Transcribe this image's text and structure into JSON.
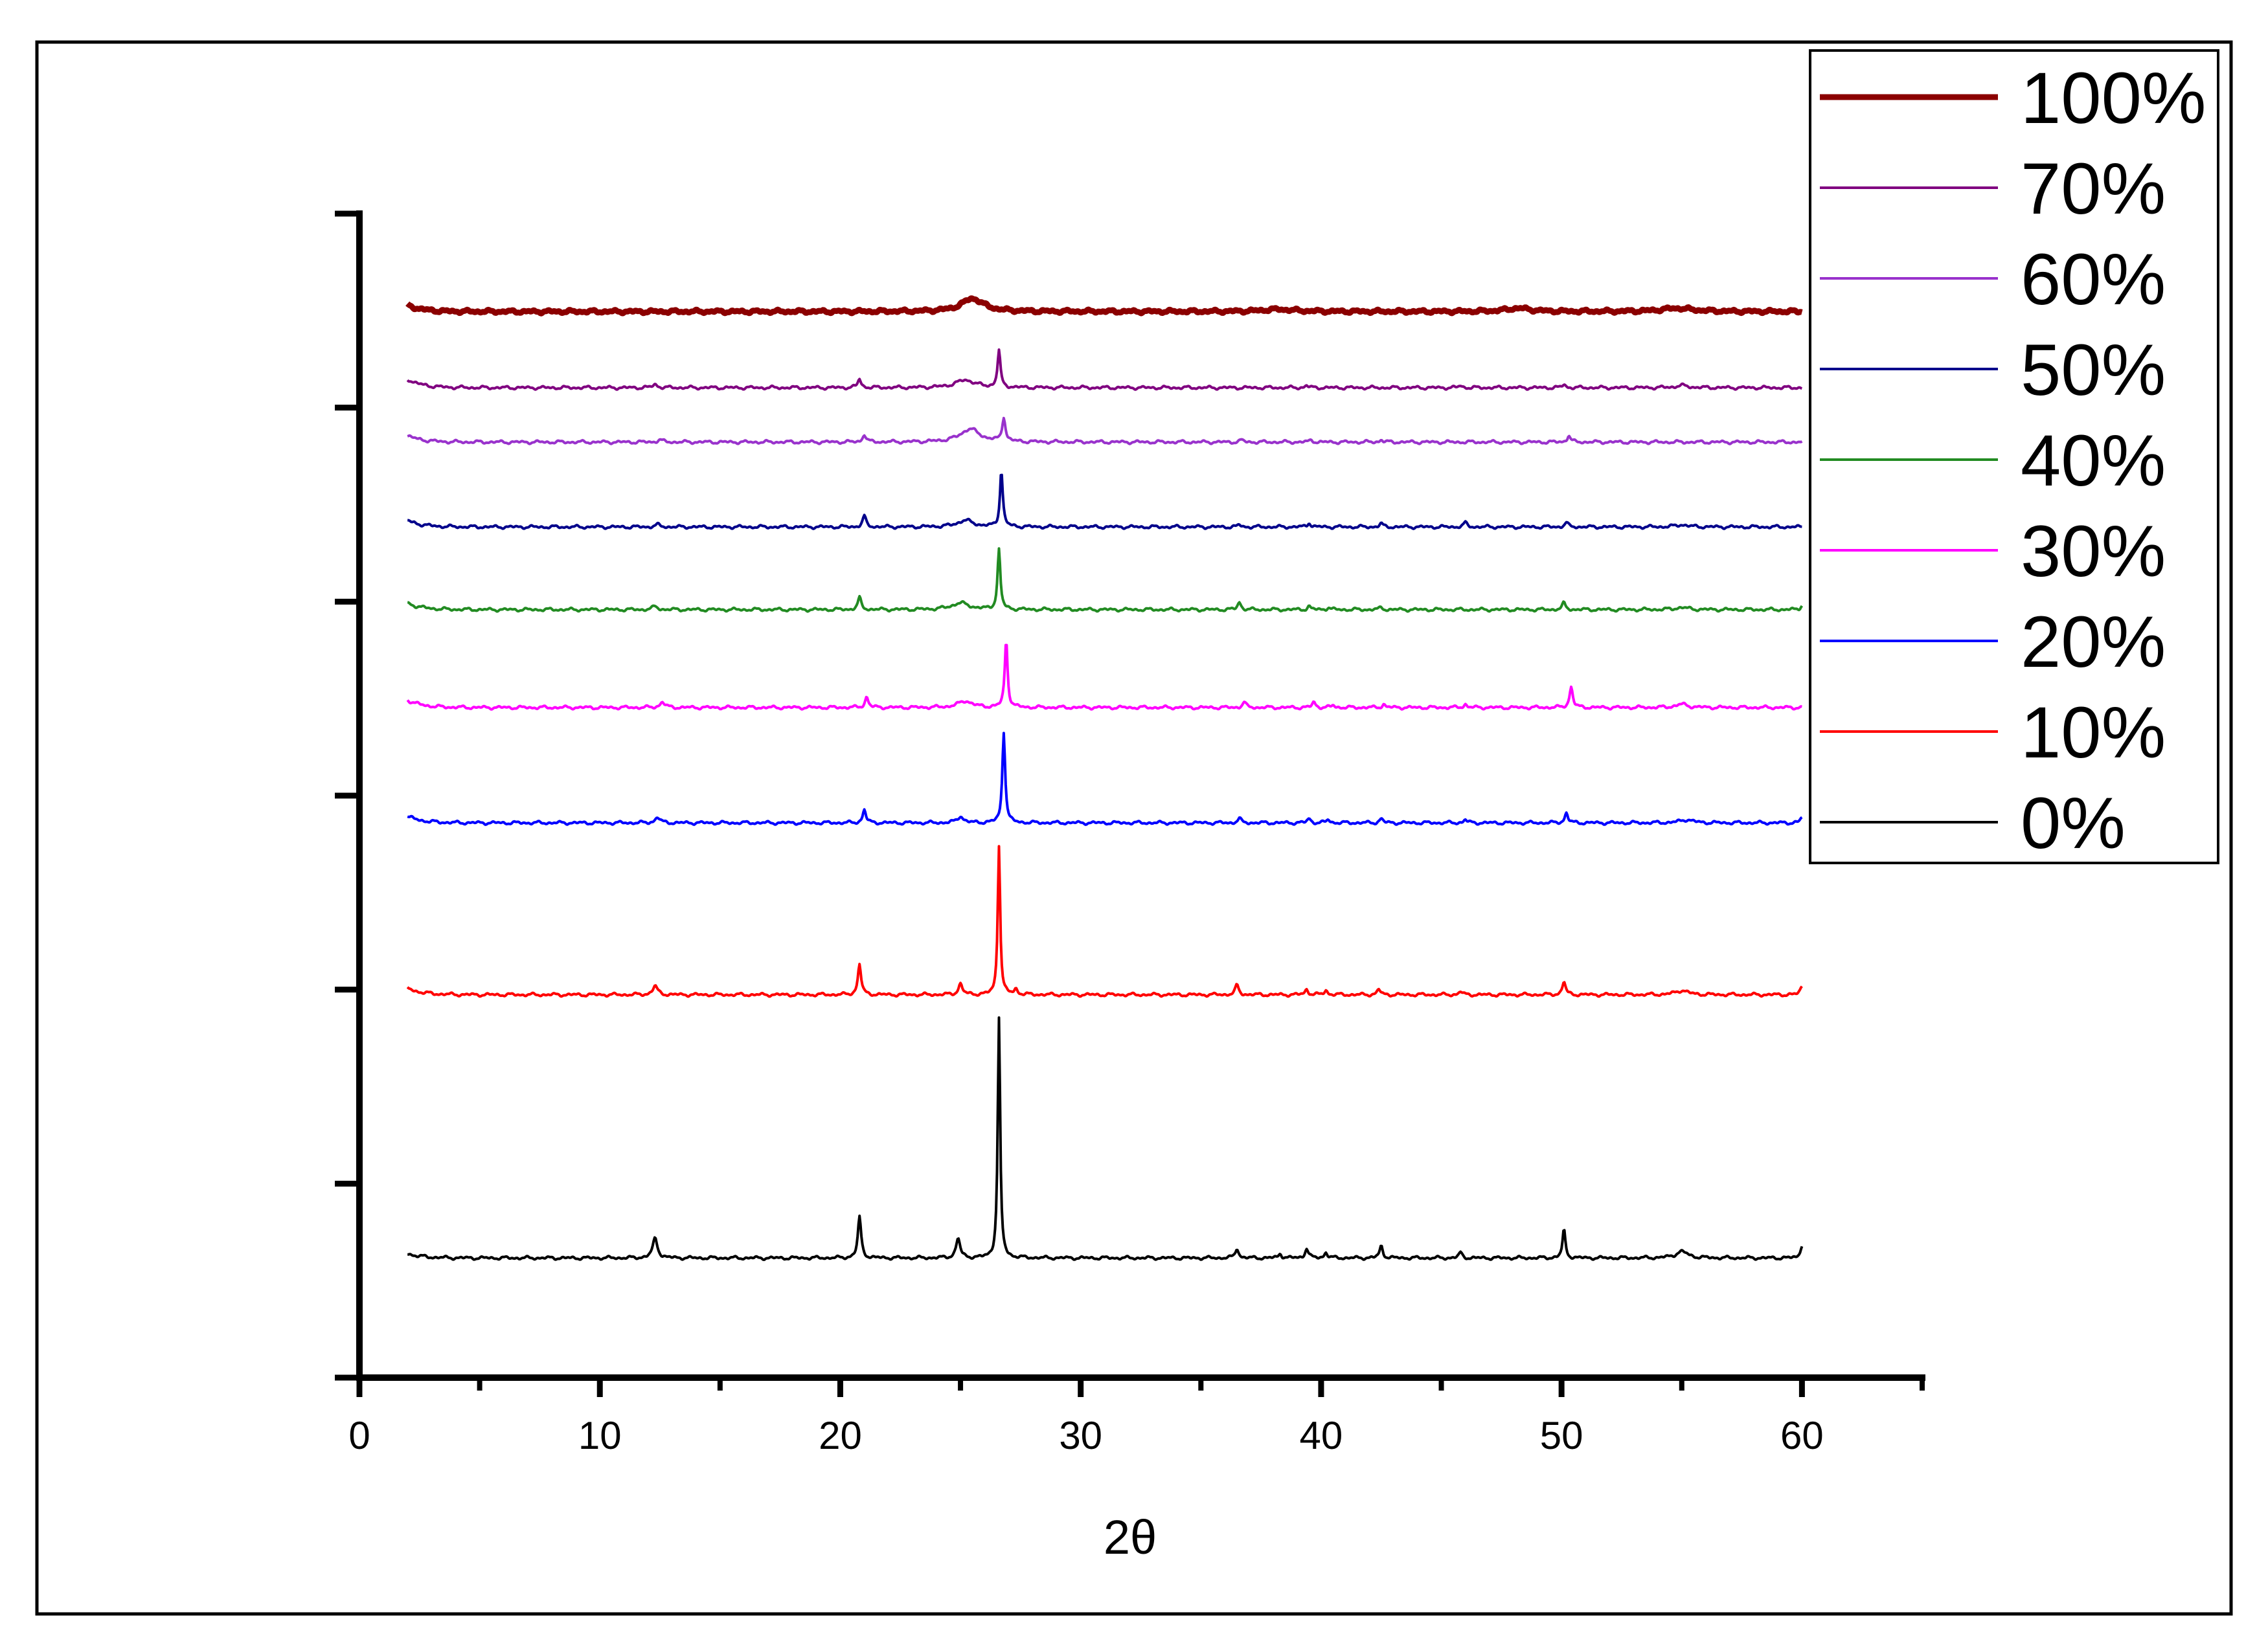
{
  "chart_data": {
    "type": "line",
    "title": "",
    "xlabel": "2θ",
    "ylabel": "",
    "xlim": [
      0,
      65
    ],
    "ylim": [
      -1.1,
      9.6
    ],
    "x_ticks": [
      0,
      10,
      20,
      30,
      40,
      50,
      60
    ],
    "x_tick_labels": [
      "0",
      "10",
      "20",
      "30",
      "40",
      "50",
      "60"
    ],
    "y_tick_labels_shown": false,
    "grid": false,
    "legend_position": "top-right",
    "stacked_offsets": true,
    "series": [
      {
        "name": "100%",
        "color": "#8b0000",
        "thick": true,
        "baseline": 8.7,
        "start_rise": 0.06,
        "peaks": [
          [
            25.5,
            0.12,
            0.55
          ],
          [
            38.2,
            0.02,
            0.8
          ],
          [
            48.2,
            0.03,
            0.6
          ],
          [
            54.8,
            0.03,
            0.8
          ]
        ]
      },
      {
        "name": "70%",
        "color": "#800080",
        "thick": false,
        "baseline": 8.0,
        "start_rise": 0.08,
        "peaks": [
          [
            12.3,
            0.03,
            0.12
          ],
          [
            20.8,
            0.08,
            0.08
          ],
          [
            25.2,
            0.07,
            0.5
          ],
          [
            26.6,
            0.34,
            0.07
          ],
          [
            39.4,
            0.02,
            0.08
          ],
          [
            45.8,
            0.02,
            0.08
          ],
          [
            50.1,
            0.03,
            0.08
          ],
          [
            55.0,
            0.02,
            0.3
          ]
        ]
      },
      {
        "name": "60%",
        "color": "#9932cc",
        "thick": false,
        "baseline": 7.5,
        "start_rise": 0.06,
        "peaks": [
          [
            12.5,
            0.02,
            0.12
          ],
          [
            21.0,
            0.07,
            0.08
          ],
          [
            25.4,
            0.12,
            0.5
          ],
          [
            26.8,
            0.22,
            0.08
          ],
          [
            36.7,
            0.02,
            0.08
          ],
          [
            39.6,
            0.02,
            0.08
          ],
          [
            42.5,
            0.02,
            0.08
          ],
          [
            50.3,
            0.06,
            0.08
          ]
        ]
      },
      {
        "name": "50%",
        "color": "#00008b",
        "thick": false,
        "baseline": 6.72,
        "start_rise": 0.06,
        "peaks": [
          [
            12.4,
            0.02,
            0.12
          ],
          [
            21.0,
            0.1,
            0.08
          ],
          [
            25.2,
            0.06,
            0.4
          ],
          [
            26.7,
            0.52,
            0.07
          ],
          [
            36.6,
            0.02,
            0.08
          ],
          [
            39.5,
            0.04,
            0.08
          ],
          [
            42.5,
            0.03,
            0.08
          ],
          [
            46.0,
            0.04,
            0.08
          ],
          [
            50.2,
            0.04,
            0.08
          ],
          [
            55.0,
            0.02,
            0.3
          ]
        ]
      },
      {
        "name": "40%",
        "color": "#228b22",
        "thick": false,
        "baseline": 5.96,
        "start_rise": 0.06,
        "peaks": [
          [
            12.3,
            0.03,
            0.12
          ],
          [
            20.8,
            0.11,
            0.08
          ],
          [
            25.0,
            0.06,
            0.45
          ],
          [
            26.6,
            0.55,
            0.07
          ],
          [
            36.6,
            0.07,
            0.08
          ],
          [
            39.5,
            0.03,
            0.08
          ],
          [
            40.3,
            0.02,
            0.08
          ],
          [
            42.5,
            0.02,
            0.08
          ],
          [
            50.1,
            0.06,
            0.08
          ],
          [
            55.0,
            0.02,
            0.3
          ],
          [
            60.0,
            0.04,
            0.08
          ]
        ]
      },
      {
        "name": "30%",
        "color": "#ff00ff",
        "thick": false,
        "baseline": 5.06,
        "start_rise": 0.07,
        "peaks": [
          [
            12.6,
            0.05,
            0.12
          ],
          [
            21.1,
            0.1,
            0.08
          ],
          [
            25.2,
            0.06,
            0.35
          ],
          [
            26.9,
            0.62,
            0.07
          ],
          [
            36.8,
            0.05,
            0.08
          ],
          [
            39.7,
            0.05,
            0.08
          ],
          [
            40.5,
            0.02,
            0.08
          ],
          [
            42.6,
            0.03,
            0.08
          ],
          [
            46.0,
            0.03,
            0.08
          ],
          [
            50.4,
            0.19,
            0.08
          ],
          [
            55.0,
            0.03,
            0.3
          ]
        ]
      },
      {
        "name": "20%",
        "color": "#0000ff",
        "thick": false,
        "baseline": 4.0,
        "start_rise": 0.06,
        "peaks": [
          [
            12.4,
            0.05,
            0.12
          ],
          [
            21.0,
            0.12,
            0.08
          ],
          [
            25.0,
            0.06,
            0.15
          ],
          [
            26.8,
            0.84,
            0.07
          ],
          [
            36.6,
            0.04,
            0.08
          ],
          [
            39.5,
            0.04,
            0.08
          ],
          [
            40.3,
            0.03,
            0.08
          ],
          [
            42.5,
            0.04,
            0.08
          ],
          [
            46.0,
            0.03,
            0.08
          ],
          [
            50.2,
            0.09,
            0.08
          ],
          [
            55.2,
            0.03,
            0.3
          ],
          [
            60.0,
            0.05,
            0.08
          ]
        ]
      },
      {
        "name": "10%",
        "color": "#ff0000",
        "thick": false,
        "baseline": 2.42,
        "start_rise": 0.06,
        "peaks": [
          [
            12.3,
            0.08,
            0.12
          ],
          [
            20.8,
            0.28,
            0.08
          ],
          [
            25.0,
            0.1,
            0.1
          ],
          [
            26.6,
            1.38,
            0.06
          ],
          [
            27.3,
            0.05,
            0.08
          ],
          [
            36.5,
            0.09,
            0.08
          ],
          [
            39.4,
            0.05,
            0.08
          ],
          [
            40.2,
            0.04,
            0.08
          ],
          [
            42.4,
            0.05,
            0.08
          ],
          [
            45.8,
            0.03,
            0.08
          ],
          [
            50.1,
            0.12,
            0.08
          ],
          [
            55.0,
            0.04,
            0.3
          ],
          [
            60.0,
            0.08,
            0.08
          ]
        ]
      },
      {
        "name": "0%",
        "color": "#000000",
        "thick": false,
        "baseline": 0.0,
        "start_rise": 0.04,
        "peaks": [
          [
            12.3,
            0.18,
            0.12
          ],
          [
            20.8,
            0.38,
            0.08
          ],
          [
            24.9,
            0.18,
            0.1
          ],
          [
            26.6,
            2.2,
            0.06
          ],
          [
            36.5,
            0.09,
            0.08
          ],
          [
            38.3,
            0.04,
            0.08
          ],
          [
            39.4,
            0.09,
            0.08
          ],
          [
            40.2,
            0.05,
            0.08
          ],
          [
            42.5,
            0.11,
            0.08
          ],
          [
            45.8,
            0.05,
            0.08
          ],
          [
            50.1,
            0.26,
            0.07
          ],
          [
            55.0,
            0.06,
            0.3
          ],
          [
            60.0,
            0.12,
            0.08
          ]
        ]
      }
    ]
  }
}
